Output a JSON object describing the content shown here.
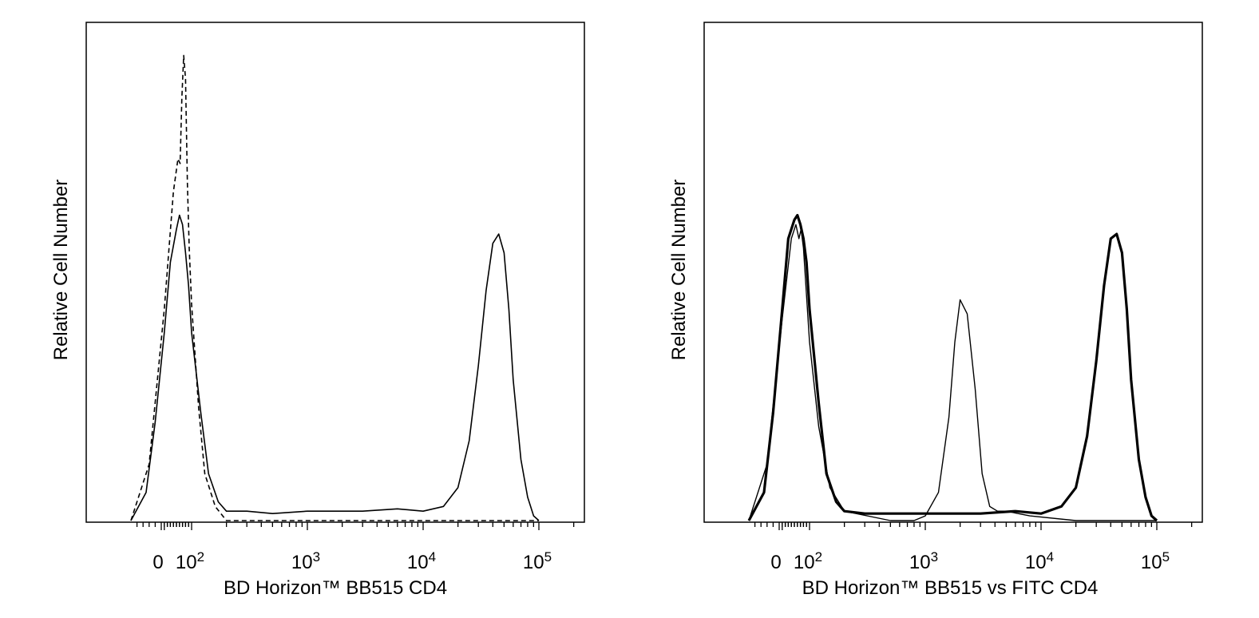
{
  "chart_data": [
    {
      "type": "histogram",
      "xlabel": "BD Horizon™ BB515 CD4",
      "ylabel": "Relative Cell Number",
      "x_scale": "biexponential (log with linear zero region)",
      "xlim": [
        -200,
        250000
      ],
      "ylim": [
        0,
        1
      ],
      "x_tick_labels": [
        {
          "base": "0",
          "exp": "",
          "value": 0
        },
        {
          "base": "10",
          "exp": "2",
          "value": 100
        },
        {
          "base": "10",
          "exp": "3",
          "value": 1000
        },
        {
          "base": "10",
          "exp": "4",
          "value": 10000
        },
        {
          "base": "10",
          "exp": "5",
          "value": 100000
        }
      ],
      "grid": false,
      "series": [
        {
          "style": "solid",
          "stroke_width": 1.6,
          "x": [
            -100,
            -50,
            -20,
            10,
            30,
            50,
            60,
            70,
            80,
            90,
            100,
            120,
            140,
            170,
            200,
            300,
            500,
            1000,
            3000,
            6000,
            10000,
            15000,
            20000,
            25000,
            30000,
            35000,
            40000,
            45000,
            50000,
            55000,
            60000,
            70000,
            80000,
            90000,
            100000
          ],
          "y": [
            0.0,
            0.06,
            0.21,
            0.4,
            0.55,
            0.62,
            0.65,
            0.63,
            0.57,
            0.5,
            0.4,
            0.23,
            0.1,
            0.04,
            0.02,
            0.02,
            0.015,
            0.02,
            0.02,
            0.025,
            0.02,
            0.03,
            0.07,
            0.17,
            0.33,
            0.49,
            0.59,
            0.61,
            0.57,
            0.45,
            0.3,
            0.13,
            0.05,
            0.01,
            0.0
          ]
        },
        {
          "style": "dashed",
          "stroke_width": 1.6,
          "x": [
            -100,
            -40,
            10,
            40,
            55,
            62,
            68,
            74,
            80,
            86,
            92,
            100,
            115,
            130,
            160,
            200,
            500,
            5000,
            50000,
            100000
          ],
          "y": [
            0.0,
            0.12,
            0.45,
            0.7,
            0.77,
            0.76,
            0.9,
            0.99,
            0.94,
            0.72,
            0.58,
            0.46,
            0.24,
            0.1,
            0.03,
            0.0,
            0.0,
            0.0,
            0.0,
            0.0
          ]
        }
      ]
    },
    {
      "type": "histogram",
      "xlabel": "BD Horizon™ BB515 vs FITC CD4",
      "ylabel": "Relative Cell Number",
      "x_scale": "biexponential (log with linear zero region)",
      "xlim": [
        -200,
        250000
      ],
      "ylim": [
        0,
        1
      ],
      "x_tick_labels": [
        {
          "base": "0",
          "exp": "",
          "value": 0
        },
        {
          "base": "10",
          "exp": "2",
          "value": 100
        },
        {
          "base": "10",
          "exp": "3",
          "value": 1000
        },
        {
          "base": "10",
          "exp": "4",
          "value": 10000
        },
        {
          "base": "10",
          "exp": "5",
          "value": 100000
        }
      ],
      "grid": false,
      "series": [
        {
          "style": "solid-thick",
          "stroke_width": 3.2,
          "x": [
            -100,
            -50,
            -20,
            10,
            30,
            50,
            60,
            70,
            80,
            90,
            100,
            120,
            140,
            170,
            200,
            300,
            500,
            1000,
            3000,
            6000,
            10000,
            15000,
            20000,
            25000,
            30000,
            35000,
            40000,
            45000,
            50000,
            55000,
            60000,
            70000,
            80000,
            90000,
            100000
          ],
          "y": [
            0.0,
            0.06,
            0.23,
            0.45,
            0.6,
            0.64,
            0.65,
            0.63,
            0.6,
            0.55,
            0.45,
            0.25,
            0.1,
            0.04,
            0.02,
            0.015,
            0.015,
            0.015,
            0.015,
            0.02,
            0.015,
            0.03,
            0.07,
            0.18,
            0.34,
            0.5,
            0.6,
            0.61,
            0.57,
            0.45,
            0.3,
            0.13,
            0.05,
            0.01,
            0.0
          ]
        },
        {
          "style": "solid-thin",
          "stroke_width": 1.4,
          "x": [
            -100,
            -40,
            10,
            40,
            55,
            65,
            72,
            80,
            90,
            100,
            120,
            150,
            200,
            500,
            800,
            1000,
            1300,
            1600,
            1800,
            2000,
            2300,
            2700,
            3100,
            3600,
            4200,
            5000,
            8000,
            20000,
            100000
          ],
          "y": [
            0.0,
            0.12,
            0.43,
            0.6,
            0.63,
            0.6,
            0.62,
            0.58,
            0.48,
            0.38,
            0.2,
            0.07,
            0.02,
            0.0,
            0.0,
            0.01,
            0.06,
            0.22,
            0.38,
            0.47,
            0.44,
            0.28,
            0.1,
            0.03,
            0.02,
            0.02,
            0.01,
            0.0,
            0.0
          ]
        }
      ]
    }
  ]
}
